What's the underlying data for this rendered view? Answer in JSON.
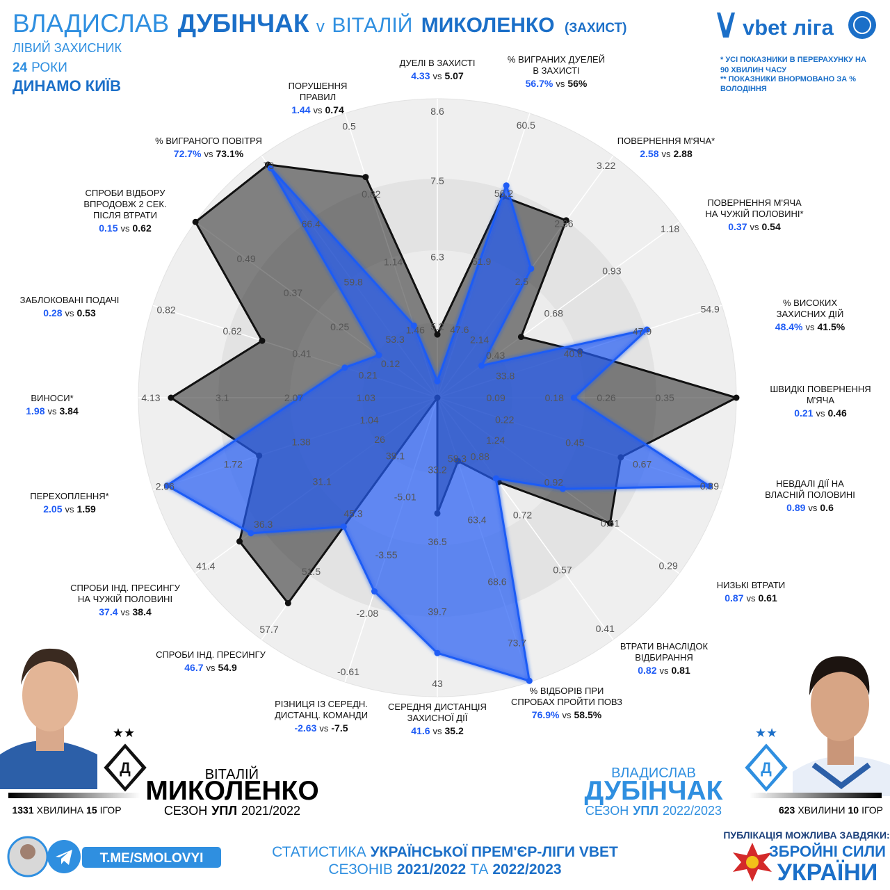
{
  "header": {
    "first_name": "ВЛАДИСЛАВ",
    "last_name": "ДУБІНЧАК",
    "versus": "v",
    "opp_first_name": "ВІТАЛІЙ",
    "opp_last_name": "МИКОЛЕНКО",
    "role": "(ЗАХИСТ)",
    "position": "ЛІВИЙ ЗАХИСНИК",
    "age": "24",
    "age_unit": "РОКИ",
    "team": "ДИНАМО КИЇВ"
  },
  "logo": "vbet ліга",
  "notes": [
    "* УСІ ПОКАЗНИКИ В ПЕРЕРАХУНКУ НА",
    "90 ХВИЛИН ЧАСУ",
    "** ПОКАЗНИКИ ВНОРМОВАНО ЗА %",
    "ВОЛОДІННЯ"
  ],
  "chart_data": {
    "type": "radar",
    "separator": "vs",
    "axes": [
      {
        "label": [
          "ДУЕЛІ В ЗАХИСТІ"
        ],
        "ylim": [
          4.07,
          8.8
        ],
        "yticks": [
          5.2,
          6.3,
          7.5,
          8.6
        ]
      },
      {
        "label": [
          "% ВИГРАНИХ ДУЕЛЕЙ",
          "В ЗАХИСТІ"
        ],
        "ylim": [
          43.3,
          61.25
        ],
        "yticks": [
          47.6,
          51.9,
          56.2,
          60.5
        ]
      },
      {
        "label": [
          "ПОВЕРНЕННЯ М'ЯЧА*"
        ],
        "ylim": [
          1.78,
          3.28
        ],
        "yticks": [
          2.14,
          2.5,
          2.86,
          3.22
        ]
      },
      {
        "label": [
          "ПОВЕРНЕННЯ М'ЯЧА",
          "НА ЧУЖІЙ ПОЛОВИНІ*"
        ],
        "ylim": [
          0.18,
          1.22
        ],
        "yticks": [
          0.43,
          0.68,
          0.93,
          1.18
        ]
      },
      {
        "label": [
          "% ВИСОКИХ",
          "ЗАХИСНИХ ДІЙ"
        ],
        "ylim": [
          26.8,
          56.1
        ],
        "yticks": [
          33.8,
          40.8,
          47.9,
          54.9
        ]
      },
      {
        "label": [
          "ШВИДКІ ПОВЕРНЕННЯ",
          "М'ЯЧА"
        ],
        "ylim": [
          0,
          0.46
        ],
        "yticks": [
          0.09,
          0.18,
          0.26,
          0.35
        ]
      },
      {
        "label": [
          "НЕВДАЛІ ДІЇ НА",
          "ВЛАСНІЙ ПОЛОВИНІ"
        ],
        "ylim": [
          0,
          0.93
        ],
        "yticks": [
          0.22,
          0.45,
          0.67,
          0.89
        ]
      },
      {
        "label": [
          "НИЗЬКІ ВТРАТИ"
        ],
        "ylim": [
          1.56,
          0.23
        ],
        "yticks": [
          1.24,
          0.92,
          0.61,
          0.29
        ]
      },
      {
        "label": [
          "ВТРАТИ ВНАСЛІДОК",
          "ВІДБИРАННЯ"
        ],
        "ylim": [
          1.04,
          0.38
        ],
        "yticks": [
          0.88,
          0.72,
          0.57,
          0.41
        ]
      },
      {
        "label": [
          "% ВІДБОРІВ ПРИ",
          "СПРОБАХ ПРОЙТИ ПОВЗ"
        ],
        "ylim": [
          53.2,
          77
        ],
        "yticks": [
          58.3,
          63.4,
          68.6,
          73.7
        ]
      },
      {
        "label": [
          "СЕРЕДНЯ ДИСТАНЦІЯ",
          "ЗАХИСНОЇ ДІЇ"
        ],
        "ylim": [
          29.9,
          43.6
        ],
        "yticks": [
          33.2,
          36.5,
          39.7,
          43
        ]
      },
      {
        "label": [
          "РІЗНИЦЯ ІЗ СЕРЕДН.",
          "ДИСТАНЦ. КОМАНДИ"
        ],
        "ylim": [
          -7.5,
          -0.35
        ],
        "yticks": [
          -5.01,
          -3.55,
          -2.08,
          -0.61
        ]
      },
      {
        "label": [
          "СПРОБИ ІНД. ПРЕСИНГУ"
        ],
        "ylim": [
          32.9,
          58.8
        ],
        "yticks": [
          39.1,
          45.3,
          51.5,
          57.7
        ]
      },
      {
        "label": [
          "СПРОБИ ІНД. ПРЕСИНГУ",
          "НА ЧУЖІЙ ПОЛОВИНІ"
        ],
        "ylim": [
          20.9,
          42.3
        ],
        "yticks": [
          26,
          31.1,
          36.3,
          41.4
        ]
      },
      {
        "label": [
          "ПЕРЕХОПЛЕННЯ*"
        ],
        "ylim": [
          0.7,
          2.12
        ],
        "yticks": [
          1.04,
          1.38,
          1.72,
          2.06
        ]
      },
      {
        "label": [
          "ВИНОСИ*"
        ],
        "ylim": [
          0,
          4.31
        ],
        "yticks": [
          1.03,
          2.07,
          3.1,
          4.13
        ]
      },
      {
        "label": [
          "ЗАБЛОКОВАНІ ПОДАЧІ"
        ],
        "ylim": [
          0,
          0.86
        ],
        "yticks": [
          0.21,
          0.41,
          0.62,
          0.82
        ]
      },
      {
        "label": [
          "СПРОБИ ВІДБОРУ",
          "ВПРОДОВЖ 2 СЕК.",
          "ПІСЛЯ ВТРАТИ"
        ],
        "ylim": [
          0,
          0.62
        ],
        "yticks": [
          0.12,
          0.25,
          0.37,
          0.49
        ]
      },
      {
        "label": [
          "% ВИГРАНОГО ПОВІТРЯ"
        ],
        "ylim": [
          46.7,
          74.1
        ],
        "yticks": [
          53.3,
          59.8,
          66.4,
          73
        ]
      },
      {
        "label": [
          "ПОРУШЕННЯ",
          "ПРАВИЛ"
        ],
        "ylim": [
          1.78,
          0.44
        ],
        "yticks": [
          1.46,
          1.14,
          0.82,
          0.5
        ]
      }
    ],
    "series": [
      {
        "color": "#1f5cf5",
        "values": [
          4.33,
          56.7,
          2.58,
          0.37,
          48.4,
          0.21,
          0.89,
          0.87,
          0.82,
          76.9,
          41.6,
          -2.63,
          46.7,
          37.4,
          2.05,
          1.98,
          0.28,
          0.15,
          72.7,
          1.44
        ],
        "value_labels": [
          "4.33",
          "56.7%",
          "2.58",
          "0.37",
          "48.4%",
          "0.21",
          "0.89",
          "0.87",
          "0.82",
          "76.9%",
          "41.6",
          "-2.63",
          "46.7",
          "37.4",
          "2.05",
          "1.98",
          "0.28",
          "0.15",
          "72.7%",
          "1.44"
        ]
      },
      {
        "color": "#111111",
        "values": [
          5.07,
          56,
          2.88,
          0.54,
          41.5,
          0.46,
          0.6,
          0.61,
          0.81,
          58.5,
          35.2,
          -7.5,
          54.9,
          38.4,
          1.59,
          3.84,
          0.53,
          0.62,
          73.1,
          0.74
        ],
        "value_labels": [
          "5.07",
          "56%",
          "2.88",
          "0.54",
          "41.5%",
          "0.46",
          "0.6",
          "0.61",
          "0.81",
          "58.5%",
          "35.2",
          "-7.5",
          "54.9",
          "38.4",
          "1.59",
          "3.84",
          "0.53",
          "0.62",
          "73.1%",
          "0.74"
        ]
      }
    ]
  },
  "left_player": {
    "first_name": "ВІТАЛІЙ",
    "last_name": "МИКОЛЕНКО",
    "season_label": "СЕЗОН",
    "league": "УПЛ",
    "season": "2021/2022",
    "minutes": "1331",
    "minutes_label": "ХВИЛИНА",
    "games": "15",
    "games_label": "ІГОР"
  },
  "right_player": {
    "first_name": "ВЛАДИСЛАВ",
    "last_name": "ДУБІНЧАК",
    "season_label": "СЕЗОН",
    "league": "УПЛ",
    "season": "2022/2023",
    "minutes": "623",
    "minutes_label": "ХВИЛИНИ",
    "games": "10",
    "games_label": "ІГОР"
  },
  "footer": {
    "channel": "T.ME/SMOLOVYI",
    "line1_a": "СТАТИСТИКА",
    "line1_b": "УКРАЇНСЬКОЇ ПРЕМ'ЄР-ЛІГИ VBET",
    "line2_a": "СЕЗОНІВ",
    "line2_b": "2021/2022",
    "line2_c": "ТА",
    "line2_d": "2022/2023",
    "sponsor_intro": "ПУБЛІКАЦІЯ МОЖЛИВА ЗАВДЯКИ:",
    "sponsor_line1": "ЗБРОЙНІ СИЛИ",
    "sponsor_line2": "УКРАЇНИ"
  }
}
